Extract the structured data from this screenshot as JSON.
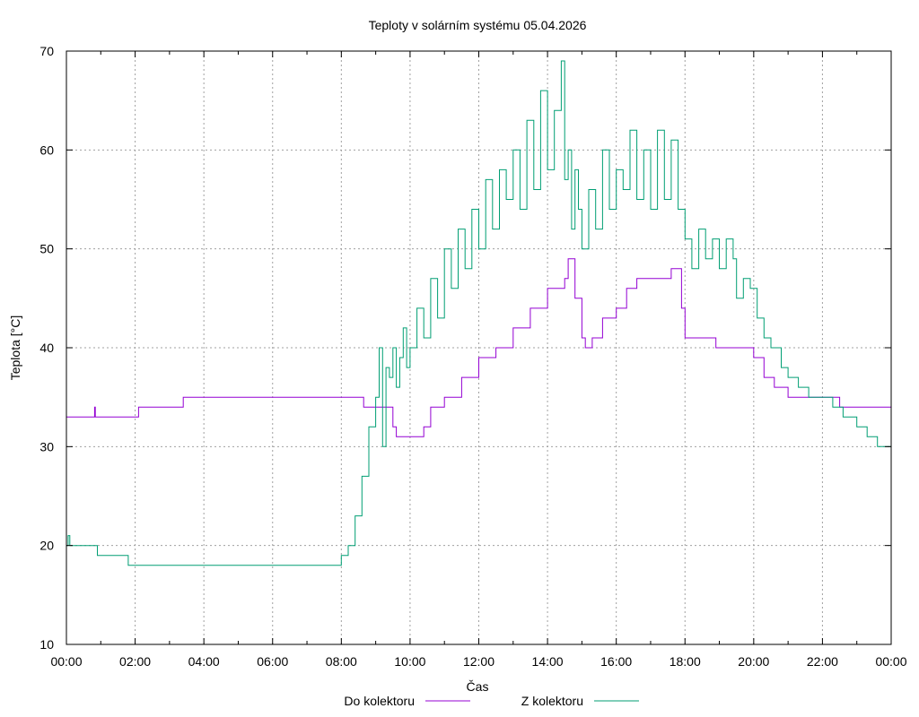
{
  "chart_data": {
    "type": "line",
    "title": "Teploty v solárním systému 05.04.2026",
    "xlabel": "Čas",
    "ylabel": "Teplota [°C]",
    "xlim": [
      0,
      24
    ],
    "ylim": [
      10,
      70
    ],
    "x_ticks": [
      "00:00",
      "02:00",
      "04:00",
      "06:00",
      "08:00",
      "10:00",
      "12:00",
      "14:00",
      "16:00",
      "18:00",
      "20:00",
      "22:00",
      "00:00"
    ],
    "y_ticks": [
      "10",
      "20",
      "30",
      "40",
      "50",
      "60",
      "70"
    ],
    "grid": true,
    "legend_position": "bottom",
    "series": [
      {
        "name": "Do kolektoru",
        "color": "#9400d3",
        "x": [
          0,
          0.8,
          0.82,
          0.84,
          2.0,
          2.1,
          2.2,
          3.3,
          3.4,
          8.0,
          8.6,
          8.65,
          8.7,
          9.0,
          9.3,
          9.5,
          9.6,
          10.0,
          10.4,
          10.6,
          11.0,
          11.5,
          12.0,
          12.5,
          13.0,
          13.5,
          14.0,
          14.5,
          14.6,
          14.8,
          15.0,
          15.1,
          15.3,
          15.6,
          16.0,
          16.3,
          16.6,
          17.0,
          17.5,
          17.6,
          17.9,
          18.0,
          18.5,
          18.8,
          18.9,
          19.0,
          19.5,
          20.0,
          20.3,
          20.6,
          21.0,
          21.5,
          22.0,
          22.5,
          23.0,
          23.5,
          24.0
        ],
        "y": [
          33,
          33,
          34,
          33,
          33,
          34,
          34,
          34,
          35,
          35,
          35,
          34,
          34,
          34,
          34,
          32,
          31,
          31,
          32,
          34,
          35,
          37,
          39,
          40,
          42,
          44,
          46,
          47,
          49,
          45,
          41,
          40,
          41,
          43,
          44,
          46,
          47,
          47,
          47,
          48,
          44,
          41,
          41,
          41,
          40,
          40,
          40,
          39,
          37,
          36,
          35,
          35,
          35,
          34,
          34,
          34,
          34
        ]
      },
      {
        "name": "Z kolektoru",
        "color": "#009e73",
        "x": [
          0,
          0.05,
          0.1,
          0.8,
          0.9,
          1.0,
          1.7,
          1.8,
          1.9,
          3.0,
          7.9,
          8.0,
          8.2,
          8.4,
          8.6,
          8.8,
          9.0,
          9.1,
          9.2,
          9.3,
          9.4,
          9.5,
          9.6,
          9.7,
          9.8,
          9.9,
          10.0,
          10.2,
          10.4,
          10.6,
          10.8,
          11.0,
          11.2,
          11.4,
          11.6,
          11.8,
          12.0,
          12.2,
          12.4,
          12.6,
          12.8,
          13.0,
          13.2,
          13.4,
          13.6,
          13.8,
          14.0,
          14.2,
          14.4,
          14.5,
          14.6,
          14.7,
          14.8,
          14.9,
          15.0,
          15.2,
          15.4,
          15.6,
          15.8,
          16.0,
          16.2,
          16.4,
          16.6,
          16.8,
          17.0,
          17.2,
          17.4,
          17.6,
          17.8,
          18.0,
          18.2,
          18.4,
          18.6,
          18.8,
          19.0,
          19.2,
          19.4,
          19.5,
          19.7,
          19.9,
          20.1,
          20.3,
          20.5,
          20.8,
          21.0,
          21.3,
          21.6,
          22.0,
          22.3,
          22.6,
          23.0,
          23.3,
          23.6,
          23.7,
          24.0
        ],
        "y": [
          20,
          21,
          20,
          20,
          19,
          19,
          19,
          18,
          18,
          18,
          18,
          19,
          20,
          23,
          27,
          32,
          35,
          40,
          30,
          38,
          37,
          40,
          36,
          39,
          42,
          38,
          40,
          44,
          41,
          47,
          43,
          50,
          46,
          52,
          48,
          54,
          50,
          57,
          52,
          58,
          55,
          60,
          54,
          63,
          56,
          66,
          58,
          64,
          69,
          57,
          60,
          52,
          58,
          54,
          50,
          56,
          52,
          60,
          54,
          58,
          56,
          62,
          55,
          60,
          54,
          62,
          55,
          61,
          54,
          51,
          48,
          52,
          49,
          51,
          48,
          51,
          49,
          45,
          47,
          46,
          43,
          41,
          40,
          38,
          37,
          36,
          35,
          35,
          34,
          33,
          32,
          31,
          30,
          30,
          29
        ]
      }
    ]
  }
}
